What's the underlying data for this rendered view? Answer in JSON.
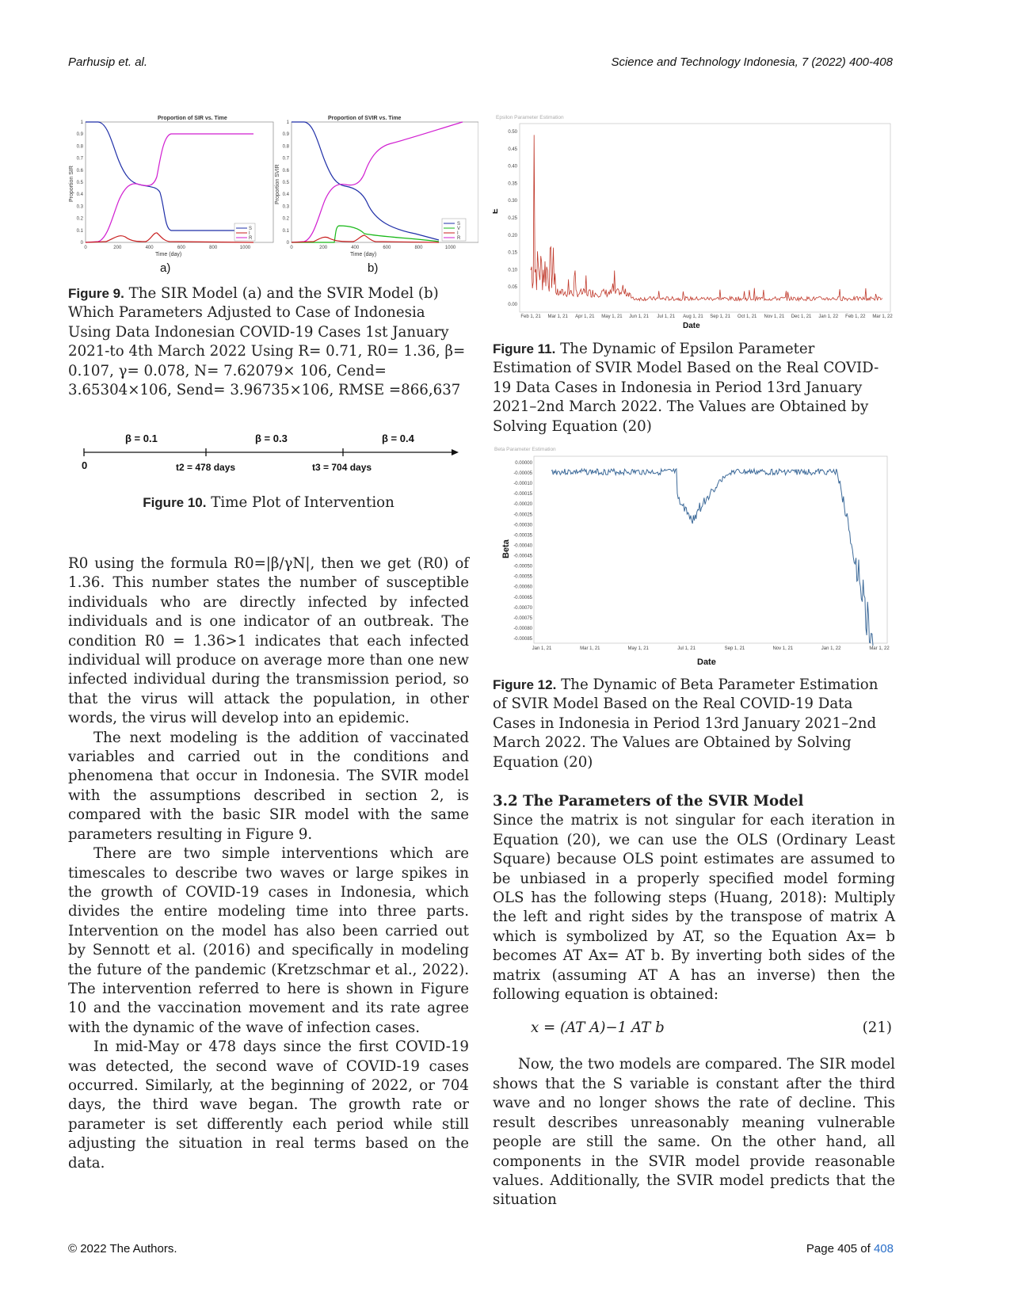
{
  "header": {
    "left": "Parhusip et. al.",
    "right": "Science and Technology Indonesia, 7 (2022) 400-408"
  },
  "footer": {
    "left": "© 2022 The Authors.",
    "right_prefix": "Page 405 of ",
    "right_link": "408"
  },
  "fig9": {
    "plot_a": {
      "title": "Proportion of SIR vs. Time",
      "ylabel": "Proportion SIR",
      "xlabel": "Time (day)",
      "legend": [
        "S",
        "I",
        "R"
      ],
      "panel_label": "a)"
    },
    "plot_b": {
      "title": "Proportion of SVIR vs. Time",
      "ylabel": "Proportion SVIR",
      "xlabel": "Time (day)",
      "legend": [
        "S",
        "V",
        "I",
        "R"
      ],
      "panel_label": "b)"
    },
    "yticks": [
      "0",
      "0.1",
      "0.2",
      "0.3",
      "0.4",
      "0.5",
      "0.6",
      "0.7",
      "0.8",
      "0.9",
      "1"
    ],
    "xticks": [
      "0",
      "200",
      "400",
      "600",
      "800",
      "1000"
    ],
    "caption_label": "Figure 9.",
    "caption": "The SIR Model (a) and the SVIR Model (b) Which Parameters Adjusted to Case of Indonesia Using Data Indonesian COVID-19 Cases 1st January 2021-to 4th March 2022 Using R= 0.71, R0= 1.36, β= 0.107, γ= 0.078, N= 7.62079× 106, Cend= 3.65304×106, Send= 3.96735×106, RMSE =866,637"
  },
  "fig10": {
    "betas": [
      "β = 0.1",
      "β = 0.3",
      "β = 0.4"
    ],
    "origin": "0",
    "t2": "t2 = 478 days",
    "t3": "t3 = 704 days",
    "caption_label": "Figure 10.",
    "caption": "Time Plot of Intervention"
  },
  "fig11": {
    "title": "Epsilon Parameter Estimation",
    "ylabel": "E",
    "xlabel": "Date",
    "yticks": [
      "0.00",
      "0.05",
      "0.10",
      "0.15",
      "0.20",
      "0.25",
      "0.30",
      "0.35",
      "0.40",
      "0.45",
      "0.50"
    ],
    "xticks": [
      "Feb 1, 21",
      "Mar 1, 21",
      "Apr 1, 21",
      "May 1, 21",
      "Jun 1, 21",
      "Jul 1, 21",
      "Aug 1, 21",
      "Sep 1, 21",
      "Oct 1, 21",
      "Nov 1, 21",
      "Dec 1, 21",
      "Jan 1, 22",
      "Feb 1, 22",
      "Mar 1, 22"
    ],
    "caption_label": "Figure 11.",
    "caption": "The Dynamic of Epsilon Parameter Estimation of SVIR Model Based on the Real COVID-19 Data Cases in Indonesia in Period 13rd January 2021–2nd March 2022. The Values are Obtained by Solving Equation (20)"
  },
  "fig12": {
    "title": "Beta Parameter Estimation",
    "ylabel": "Beta",
    "xlabel": "Date",
    "yticks": [
      "0.00000",
      "-0.00005",
      "-0.00010",
      "-0.00015",
      "-0.00020",
      "-0.00025",
      "-0.00030",
      "-0.00035",
      "-0.00040",
      "-0.00045",
      "-0.00050",
      "-0.00055",
      "-0.00060",
      "-0.00065",
      "-0.00070",
      "-0.00075",
      "-0.00080",
      "-0.00085"
    ],
    "xticks": [
      "Jan 1, 21",
      "Mar 1, 21",
      "May 1, 21",
      "Jul 1, 21",
      "Sep 1, 21",
      "Nov 1, 21",
      "Jan 1, 22",
      "Mar 1, 22"
    ],
    "caption_label": "Figure 12.",
    "caption": "The Dynamic of Beta Parameter Estimation of SVIR Model Based on the Real COVID-19 Data Cases in Indonesia in Period 13rd January 2021–2nd March 2022. The Values are Obtained by Solving Equation (20)"
  },
  "left_text": {
    "p1": "R0 using the formula R0=|β/γN|, then we get (R0) of 1.36. This number states the number of susceptible individuals who are directly infected by infected individuals and is one indicator of an outbreak. The condition R0 = 1.36>1 indicates that each infected individual will produce on average more than one new infected individual during the transmission period, so that the virus will attack the population, in other words, the virus will develop into an epidemic.",
    "p2": "The next modeling is the addition of vaccinated variables and carried out in the conditions and phenomena that occur in Indonesia. The SVIR model with the assumptions described in section 2, is compared with the basic SIR model with the same parameters resulting in Figure 9.",
    "p3": "There are two simple interventions which are timescales to describe two waves or large spikes in the growth of COVID-19 cases in Indonesia, which divides the entire modeling time into three parts. Intervention on the model has also been carried out by Sennott et al. (2016) and specifically in modeling the future of the pandemic (Kretzschmar et al., 2022). The intervention referred to here is shown in Figure 10 and the vaccination movement and its rate agree with the dynamic of the wave of infection cases.",
    "p4": "In mid-May or 478 days since the first COVID-19 was detected, the second wave of COVID-19 cases occurred. Similarly, at the beginning of 2022, or 704 days, the third wave began. The growth rate or parameter is set differently each period while still adjusting the situation in real terms based on the data."
  },
  "right_text": {
    "heading": "3.2 The Parameters of the SVIR Model",
    "p1": "Since the matrix is not singular for each iteration in Equation (20), we can use the OLS (Ordinary Least Square) because OLS point estimates are assumed to be unbiased in a properly specified model forming OLS has the following steps (Huang, 2018): Multiply the left and right sides by the transpose of matrix A which is symbolized by AT, so the Equation Ax= b becomes AT Ax= AT b. By inverting both sides of the matrix (assuming AT A has an inverse) then the following equation is obtained:",
    "equation": "x = (AT A)−1 AT b",
    "eq_number": "(21)",
    "p2": "Now, the two models are compared. The SIR model shows that the S variable is constant after the third wave and no longer shows the rate of decline. This result describes unreasonably meaning vulnerable people are still the same. On the other hand, all components in the SVIR model provide reasonable values. Additionally, the SVIR model predicts that the situation"
  }
}
